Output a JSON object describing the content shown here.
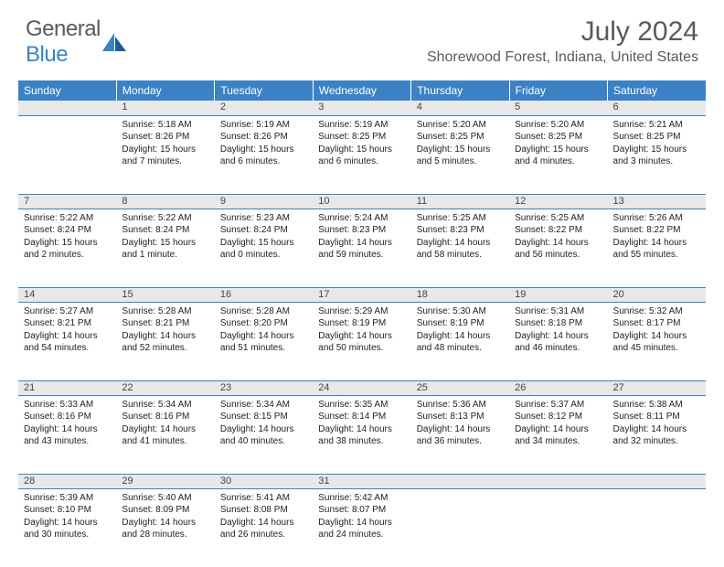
{
  "logo": {
    "text1": "General",
    "text2": "Blue"
  },
  "title": "July 2024",
  "location": "Shorewood Forest, Indiana, United States",
  "colors": {
    "header_bg": "#3b82c4",
    "header_text": "#ffffff",
    "daynum_bg": "#e8e8e8",
    "border": "#3b82c4",
    "body_text": "#222222",
    "title_text": "#5a5a5a"
  },
  "day_headers": [
    "Sunday",
    "Monday",
    "Tuesday",
    "Wednesday",
    "Thursday",
    "Friday",
    "Saturday"
  ],
  "weeks": [
    {
      "nums": [
        "",
        "1",
        "2",
        "3",
        "4",
        "5",
        "6"
      ],
      "cells": [
        {
          "sunrise": "",
          "sunset": "",
          "daylight": ""
        },
        {
          "sunrise": "Sunrise: 5:18 AM",
          "sunset": "Sunset: 8:26 PM",
          "daylight": "Daylight: 15 hours and 7 minutes."
        },
        {
          "sunrise": "Sunrise: 5:19 AM",
          "sunset": "Sunset: 8:26 PM",
          "daylight": "Daylight: 15 hours and 6 minutes."
        },
        {
          "sunrise": "Sunrise: 5:19 AM",
          "sunset": "Sunset: 8:25 PM",
          "daylight": "Daylight: 15 hours and 6 minutes."
        },
        {
          "sunrise": "Sunrise: 5:20 AM",
          "sunset": "Sunset: 8:25 PM",
          "daylight": "Daylight: 15 hours and 5 minutes."
        },
        {
          "sunrise": "Sunrise: 5:20 AM",
          "sunset": "Sunset: 8:25 PM",
          "daylight": "Daylight: 15 hours and 4 minutes."
        },
        {
          "sunrise": "Sunrise: 5:21 AM",
          "sunset": "Sunset: 8:25 PM",
          "daylight": "Daylight: 15 hours and 3 minutes."
        }
      ]
    },
    {
      "nums": [
        "7",
        "8",
        "9",
        "10",
        "11",
        "12",
        "13"
      ],
      "cells": [
        {
          "sunrise": "Sunrise: 5:22 AM",
          "sunset": "Sunset: 8:24 PM",
          "daylight": "Daylight: 15 hours and 2 minutes."
        },
        {
          "sunrise": "Sunrise: 5:22 AM",
          "sunset": "Sunset: 8:24 PM",
          "daylight": "Daylight: 15 hours and 1 minute."
        },
        {
          "sunrise": "Sunrise: 5:23 AM",
          "sunset": "Sunset: 8:24 PM",
          "daylight": "Daylight: 15 hours and 0 minutes."
        },
        {
          "sunrise": "Sunrise: 5:24 AM",
          "sunset": "Sunset: 8:23 PM",
          "daylight": "Daylight: 14 hours and 59 minutes."
        },
        {
          "sunrise": "Sunrise: 5:25 AM",
          "sunset": "Sunset: 8:23 PM",
          "daylight": "Daylight: 14 hours and 58 minutes."
        },
        {
          "sunrise": "Sunrise: 5:25 AM",
          "sunset": "Sunset: 8:22 PM",
          "daylight": "Daylight: 14 hours and 56 minutes."
        },
        {
          "sunrise": "Sunrise: 5:26 AM",
          "sunset": "Sunset: 8:22 PM",
          "daylight": "Daylight: 14 hours and 55 minutes."
        }
      ]
    },
    {
      "nums": [
        "14",
        "15",
        "16",
        "17",
        "18",
        "19",
        "20"
      ],
      "cells": [
        {
          "sunrise": "Sunrise: 5:27 AM",
          "sunset": "Sunset: 8:21 PM",
          "daylight": "Daylight: 14 hours and 54 minutes."
        },
        {
          "sunrise": "Sunrise: 5:28 AM",
          "sunset": "Sunset: 8:21 PM",
          "daylight": "Daylight: 14 hours and 52 minutes."
        },
        {
          "sunrise": "Sunrise: 5:28 AM",
          "sunset": "Sunset: 8:20 PM",
          "daylight": "Daylight: 14 hours and 51 minutes."
        },
        {
          "sunrise": "Sunrise: 5:29 AM",
          "sunset": "Sunset: 8:19 PM",
          "daylight": "Daylight: 14 hours and 50 minutes."
        },
        {
          "sunrise": "Sunrise: 5:30 AM",
          "sunset": "Sunset: 8:19 PM",
          "daylight": "Daylight: 14 hours and 48 minutes."
        },
        {
          "sunrise": "Sunrise: 5:31 AM",
          "sunset": "Sunset: 8:18 PM",
          "daylight": "Daylight: 14 hours and 46 minutes."
        },
        {
          "sunrise": "Sunrise: 5:32 AM",
          "sunset": "Sunset: 8:17 PM",
          "daylight": "Daylight: 14 hours and 45 minutes."
        }
      ]
    },
    {
      "nums": [
        "21",
        "22",
        "23",
        "24",
        "25",
        "26",
        "27"
      ],
      "cells": [
        {
          "sunrise": "Sunrise: 5:33 AM",
          "sunset": "Sunset: 8:16 PM",
          "daylight": "Daylight: 14 hours and 43 minutes."
        },
        {
          "sunrise": "Sunrise: 5:34 AM",
          "sunset": "Sunset: 8:16 PM",
          "daylight": "Daylight: 14 hours and 41 minutes."
        },
        {
          "sunrise": "Sunrise: 5:34 AM",
          "sunset": "Sunset: 8:15 PM",
          "daylight": "Daylight: 14 hours and 40 minutes."
        },
        {
          "sunrise": "Sunrise: 5:35 AM",
          "sunset": "Sunset: 8:14 PM",
          "daylight": "Daylight: 14 hours and 38 minutes."
        },
        {
          "sunrise": "Sunrise: 5:36 AM",
          "sunset": "Sunset: 8:13 PM",
          "daylight": "Daylight: 14 hours and 36 minutes."
        },
        {
          "sunrise": "Sunrise: 5:37 AM",
          "sunset": "Sunset: 8:12 PM",
          "daylight": "Daylight: 14 hours and 34 minutes."
        },
        {
          "sunrise": "Sunrise: 5:38 AM",
          "sunset": "Sunset: 8:11 PM",
          "daylight": "Daylight: 14 hours and 32 minutes."
        }
      ]
    },
    {
      "nums": [
        "28",
        "29",
        "30",
        "31",
        "",
        "",
        ""
      ],
      "cells": [
        {
          "sunrise": "Sunrise: 5:39 AM",
          "sunset": "Sunset: 8:10 PM",
          "daylight": "Daylight: 14 hours and 30 minutes."
        },
        {
          "sunrise": "Sunrise: 5:40 AM",
          "sunset": "Sunset: 8:09 PM",
          "daylight": "Daylight: 14 hours and 28 minutes."
        },
        {
          "sunrise": "Sunrise: 5:41 AM",
          "sunset": "Sunset: 8:08 PM",
          "daylight": "Daylight: 14 hours and 26 minutes."
        },
        {
          "sunrise": "Sunrise: 5:42 AM",
          "sunset": "Sunset: 8:07 PM",
          "daylight": "Daylight: 14 hours and 24 minutes."
        },
        {
          "sunrise": "",
          "sunset": "",
          "daylight": ""
        },
        {
          "sunrise": "",
          "sunset": "",
          "daylight": ""
        },
        {
          "sunrise": "",
          "sunset": "",
          "daylight": ""
        }
      ]
    }
  ]
}
